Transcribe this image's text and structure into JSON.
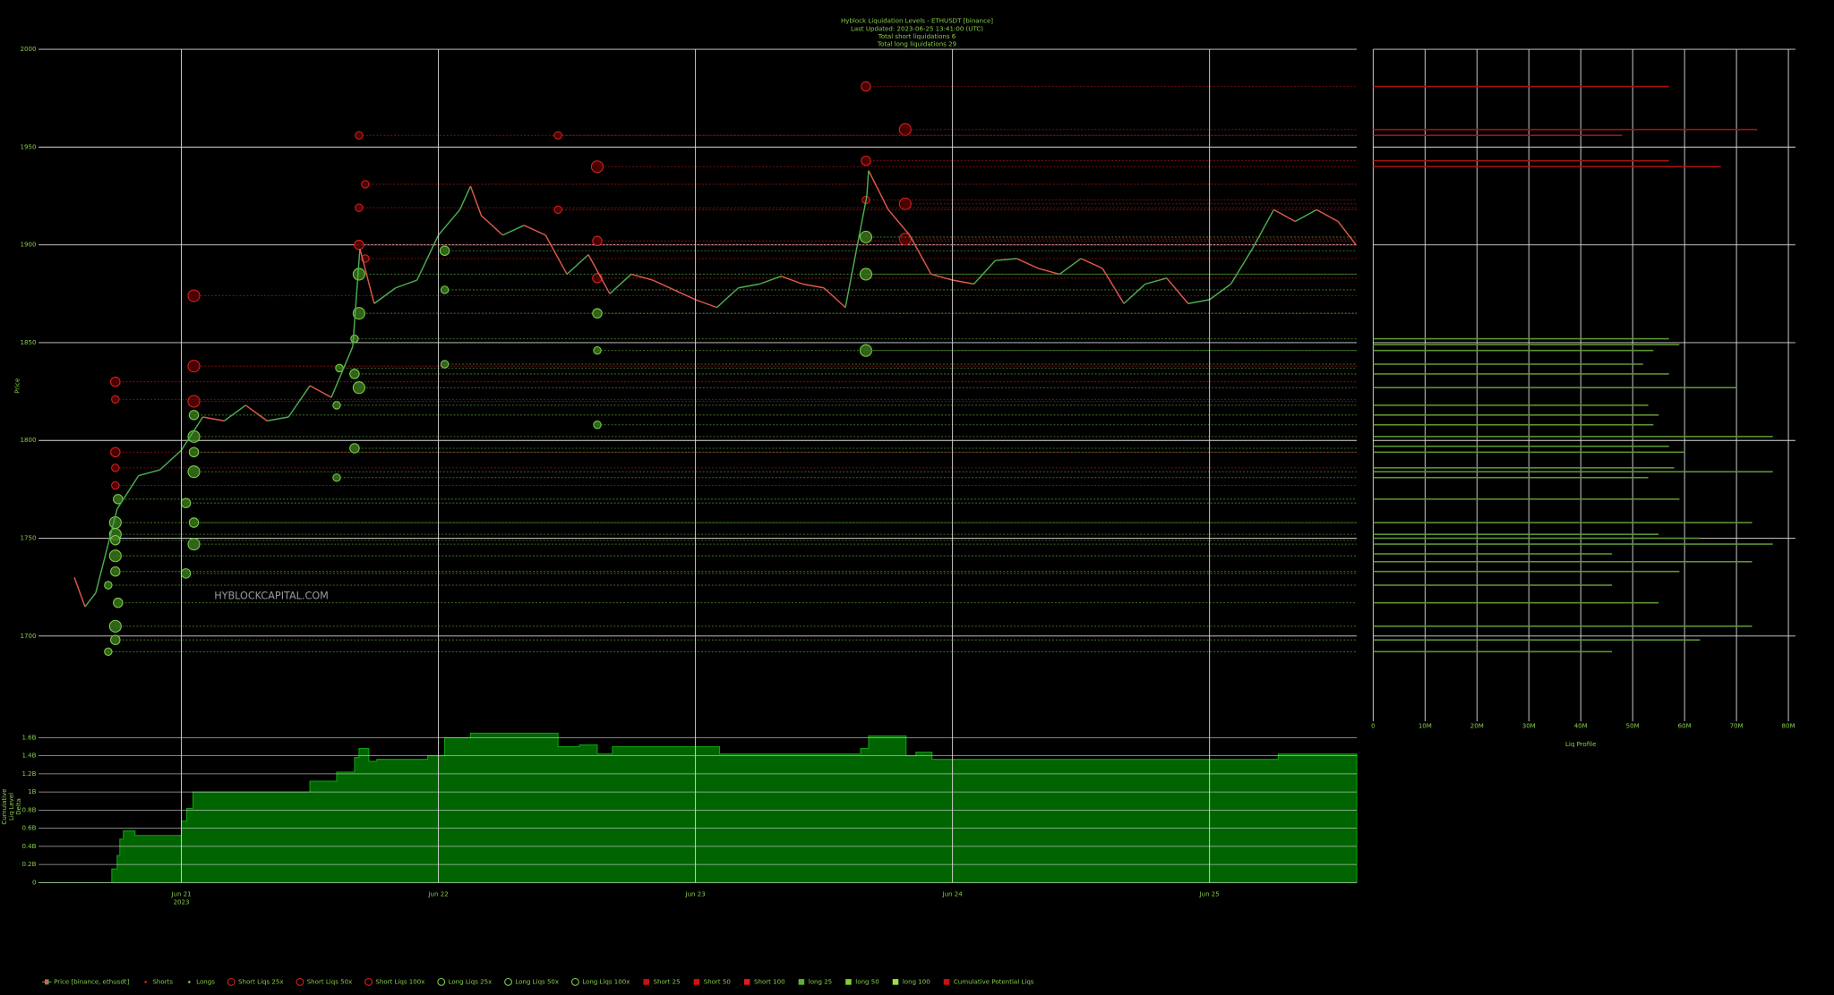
{
  "chart_data": [
    {
      "type": "line",
      "title_lines": [
        "Hyblock Liquidation Levels - ETHUSDT [binance]",
        "Last Updated: 2023-06-25 13:41:00 (UTC)",
        "Total short liquidations 6",
        "Total long liquidations 29"
      ],
      "ylabel": "Price",
      "watermark": "HYBLOCKCAPITAL.COM",
      "xlim": [
        "2023-06-20 10:40",
        "2023-06-25 13:45"
      ],
      "ylim": [
        1680,
        2000
      ],
      "yticks": [
        1700,
        1750,
        1800,
        1850,
        1900,
        1950,
        2000
      ],
      "grid": true,
      "x": [
        "2023-06-20 14:00",
        "2023-06-20 15:00",
        "2023-06-20 16:00",
        "2023-06-20 18:00",
        "2023-06-20 20:00",
        "2023-06-20 22:00",
        "2023-06-21 00:00",
        "2023-06-21 02:00",
        "2023-06-21 04:00",
        "2023-06-21 06:00",
        "2023-06-21 08:00",
        "2023-06-21 10:00",
        "2023-06-21 12:00",
        "2023-06-21 14:00",
        "2023-06-21 16:00",
        "2023-06-21 16:40",
        "2023-06-21 18:00",
        "2023-06-21 20:00",
        "2023-06-21 22:00",
        "2023-06-22 00:00",
        "2023-06-22 02:00",
        "2023-06-22 03:00",
        "2023-06-22 04:00",
        "2023-06-22 06:00",
        "2023-06-22 08:00",
        "2023-06-22 10:00",
        "2023-06-22 12:00",
        "2023-06-22 14:00",
        "2023-06-22 16:00",
        "2023-06-22 18:00",
        "2023-06-22 20:00",
        "2023-06-22 22:00",
        "2023-06-23 00:00",
        "2023-06-23 02:00",
        "2023-06-23 04:00",
        "2023-06-23 06:00",
        "2023-06-23 08:00",
        "2023-06-23 10:00",
        "2023-06-23 12:00",
        "2023-06-23 14:00",
        "2023-06-23 16:00",
        "2023-06-23 16:10",
        "2023-06-23 18:00",
        "2023-06-23 20:00",
        "2023-06-23 22:00",
        "2023-06-24 00:00",
        "2023-06-24 02:00",
        "2023-06-24 04:00",
        "2023-06-24 06:00",
        "2023-06-24 08:00",
        "2023-06-24 10:00",
        "2023-06-24 12:00",
        "2023-06-24 14:00",
        "2023-06-24 16:00",
        "2023-06-24 18:00",
        "2023-06-24 20:00",
        "2023-06-24 22:00",
        "2023-06-25 00:00",
        "2023-06-25 02:00",
        "2023-06-25 04:00",
        "2023-06-25 06:00",
        "2023-06-25 08:00",
        "2023-06-25 10:00",
        "2023-06-25 12:00",
        "2023-06-25 13:41"
      ],
      "series": [
        {
          "up_color": "#4caf50",
          "down_color": "#e05a4a",
          "values": [
            1730,
            1715,
            1722,
            1765,
            1782,
            1785,
            1795,
            1812,
            1810,
            1818,
            1810,
            1812,
            1828,
            1822,
            1848,
            1898,
            1870,
            1878,
            1882,
            1905,
            1918,
            1930,
            1915,
            1905,
            1910,
            1905,
            1885,
            1895,
            1875,
            1885,
            1882,
            1877,
            1872,
            1868,
            1878,
            1880,
            1884,
            1880,
            1878,
            1868,
            1925,
            1938,
            1918,
            1905,
            1885,
            1882,
            1880,
            1892,
            1893,
            1888,
            1885,
            1893,
            1888,
            1870,
            1880,
            1883,
            1870,
            1872,
            1880,
            1898,
            1918,
            1912,
            1918,
            1912,
            1900
          ]
        }
      ],
      "liquidations": [
        {
          "color": "#e02020",
          "fill": "#5a0000",
          "line_color": "#7a1010",
          "x": [
            "2023-06-21 01:10",
            "2023-06-21 01:10",
            "2023-06-21 01:10",
            "2023-06-22 14:50",
            "2023-06-23 19:35",
            "2023-06-23 19:35",
            "2023-06-23 19:35"
          ],
          "values": [
            1874,
            1838,
            1820,
            1940,
            1959,
            1921,
            1903
          ]
        },
        {
          "color": "#e02020",
          "fill": "#5a0000",
          "line_color": "#7a1010",
          "x": [
            "2023-06-20 17:50",
            "2023-06-20 17:50",
            "2023-06-21 16:35",
            "2023-06-22 14:50",
            "2023-06-22 14:50",
            "2023-06-23 15:55",
            "2023-06-23 15:55"
          ],
          "values": [
            1830,
            1794,
            1900,
            1902,
            1883,
            1981,
            1943
          ]
        },
        {
          "color": "#e02020",
          "fill": "#5a0000",
          "line_color": "#7a1010",
          "x": [
            "2023-06-20 17:50",
            "2023-06-20 17:50",
            "2023-06-20 17:50",
            "2023-06-21 16:35",
            "2023-06-21 17:10",
            "2023-06-21 16:35",
            "2023-06-21 17:10",
            "2023-06-22 11:10",
            "2023-06-22 11:10",
            "2023-06-23 15:55"
          ],
          "values": [
            1821,
            1786,
            1777,
            1956,
            1931,
            1919,
            1893,
            1956,
            1918,
            1923
          ]
        },
        {
          "color": "#7ad04a",
          "fill": "#3c7a1e",
          "line_color": "#3f6b25",
          "x": [
            "2023-06-20 17:50",
            "2023-06-20 17:50",
            "2023-06-20 17:50",
            "2023-06-20 17:50",
            "2023-06-21 01:10",
            "2023-06-21 01:10",
            "2023-06-21 01:10",
            "2023-06-21 16:35",
            "2023-06-21 16:35",
            "2023-06-21 16:35",
            "2023-06-23 15:55",
            "2023-06-23 15:55",
            "2023-06-23 15:55"
          ],
          "values": [
            1705,
            1741,
            1752,
            1758,
            1747,
            1784,
            1802,
            1827,
            1865,
            1885,
            1846,
            1885,
            1904
          ]
        },
        {
          "color": "#7ad04a",
          "fill": "#3c7a1e",
          "line_color": "#3f6b25",
          "x": [
            "2023-06-20 17:50",
            "2023-06-20 18:05",
            "2023-06-20 17:50",
            "2023-06-20 17:50",
            "2023-06-20 18:05",
            "2023-06-21 00:25",
            "2023-06-21 00:25",
            "2023-06-21 01:10",
            "2023-06-21 01:10",
            "2023-06-21 01:10",
            "2023-06-21 16:10",
            "2023-06-21 16:10",
            "2023-06-22 00:35",
            "2023-06-22 14:50"
          ],
          "values": [
            1698,
            1717,
            1733,
            1749,
            1770,
            1732,
            1768,
            1758,
            1794,
            1813,
            1834,
            1796,
            1897,
            1865
          ]
        },
        {
          "color": "#7ad04a",
          "fill": "#3c7a1e",
          "line_color": "#3f6b25",
          "x": [
            "2023-06-20 17:10",
            "2023-06-20 17:10",
            "2023-06-21 14:30",
            "2023-06-21 14:30",
            "2023-06-21 14:45",
            "2023-06-21 16:10",
            "2023-06-22 00:35",
            "2023-06-22 00:35",
            "2023-06-22 14:50",
            "2023-06-22 14:50"
          ],
          "values": [
            1692,
            1726,
            1781,
            1818,
            1837,
            1852,
            1839,
            1877,
            1808,
            1846
          ]
        }
      ]
    },
    {
      "type": "bar",
      "orientation": "horizontal",
      "xlabel": "Liq Profile",
      "xlim": [
        0,
        80
      ],
      "xticks": [
        0,
        {
          "value": 10,
          "label": "10M"
        },
        {
          "value": 20,
          "label": "20M"
        },
        {
          "value": 30,
          "label": "30M"
        },
        {
          "value": 40,
          "label": "40M"
        },
        {
          "value": 50,
          "label": "50M"
        },
        {
          "value": 60,
          "label": "60M"
        },
        {
          "value": 70,
          "label": "70M"
        },
        {
          "value": 80,
          "label": "80M"
        }
      ],
      "ylim": [
        1680,
        2000
      ],
      "yticks": [
        1700,
        1750,
        1800,
        1850,
        1900,
        1950,
        2000
      ],
      "grid": true,
      "series": [
        {
          "color": "#a81212",
          "categories": [
            1981,
            1959,
            1956,
            1943,
            1940
          ],
          "values": [
            57,
            74,
            48,
            57,
            67
          ]
        },
        {
          "color": "#5f9634",
          "categories": [
            1852,
            1849,
            1846,
            1839,
            1834,
            1827,
            1818,
            1813,
            1808,
            1802,
            1797,
            1794,
            1786,
            1784,
            1781,
            1770,
            1758,
            1752,
            1750,
            1747,
            1742,
            1738,
            1733,
            1726,
            1717,
            1705,
            1698,
            1692
          ],
          "values": [
            57,
            59,
            54,
            52,
            57,
            70,
            53,
            55,
            54,
            77,
            57,
            60,
            58,
            77,
            53,
            59,
            73,
            55,
            63,
            77,
            46,
            73,
            59,
            46,
            55,
            73,
            63,
            46
          ]
        }
      ]
    },
    {
      "type": "area",
      "step": "post",
      "ylabel_lines": [
        "Cumulative",
        "Liq Level",
        "Delta"
      ],
      "xlim": [
        "2023-06-20 10:40",
        "2023-06-25 13:45"
      ],
      "xticks": [
        {
          "value": "2023-06-21",
          "label": "Jun 21"
        },
        {
          "value": "2023-06-22",
          "label": "Jun 22"
        },
        {
          "value": "2023-06-23",
          "label": "Jun 23"
        },
        {
          "value": "2023-06-24",
          "label": "Jun 24"
        },
        {
          "value": "2023-06-25",
          "label": "Jun 25"
        }
      ],
      "x_year_label": "2023",
      "ylim": [
        0,
        1.7
      ],
      "yticks": [
        0,
        {
          "value": 0.2,
          "label": "0.2B"
        },
        {
          "value": 0.4,
          "label": "0.4B"
        },
        {
          "value": 0.6,
          "label": "0.6B"
        },
        {
          "value": 0.8,
          "label": "0.8B"
        },
        {
          "value": 1,
          "label": "1B"
        },
        {
          "value": 1.2,
          "label": "1.2B"
        },
        {
          "value": 1.4,
          "label": "1.4B"
        },
        {
          "value": 1.6,
          "label": "1.6B"
        }
      ],
      "grid": true,
      "color": "#006400",
      "line_color": "#10a010",
      "x": [
        "2023-06-20 10:40",
        "2023-06-20 17:30",
        "2023-06-20 18:00",
        "2023-06-20 18:15",
        "2023-06-20 18:35",
        "2023-06-20 19:40",
        "2023-06-21 00:00",
        "2023-06-21 00:30",
        "2023-06-21 01:05",
        "2023-06-21 12:00",
        "2023-06-21 14:30",
        "2023-06-21 16:10",
        "2023-06-21 16:35",
        "2023-06-21 17:30",
        "2023-06-21 18:15",
        "2023-06-21 23:00",
        "2023-06-22 00:35",
        "2023-06-22 03:00",
        "2023-06-22 11:10",
        "2023-06-22 13:10",
        "2023-06-22 14:50",
        "2023-06-22 16:15",
        "2023-06-23 02:15",
        "2023-06-23 15:25",
        "2023-06-23 16:10",
        "2023-06-23 19:40",
        "2023-06-23 20:35",
        "2023-06-23 22:05",
        "2023-06-25 06:25"
      ],
      "values": [
        0,
        0.15,
        0.3,
        0.48,
        0.57,
        0.52,
        0.68,
        0.82,
        1,
        1.12,
        1.22,
        1.38,
        1.48,
        1.34,
        1.36,
        1.4,
        1.6,
        1.65,
        1.5,
        1.52,
        1.42,
        1.5,
        1.42,
        1.48,
        1.62,
        1.4,
        1.44,
        1.36,
        1.42
      ]
    }
  ],
  "legend": [
    {
      "name": "Price [binance, ethusdt]",
      "color": "#4caf50",
      "marker": "candle"
    },
    {
      "name": "Shorts",
      "color": "#e02020",
      "marker": "dot"
    },
    {
      "name": "Longs",
      "color": "#7ad04a",
      "marker": "dot"
    },
    {
      "name": "Short Liqs 25x",
      "color": "#e02020",
      "marker": "circle"
    },
    {
      "name": "Short Liqs 50x",
      "color": "#e02020",
      "marker": "circle"
    },
    {
      "name": "Short Liqs 100x",
      "color": "#e02020",
      "marker": "circle"
    },
    {
      "name": "Long Liqs 25x",
      "color": "#7ad04a",
      "marker": "circle"
    },
    {
      "name": "Long Liqs 50x",
      "color": "#7ad04a",
      "marker": "circle"
    },
    {
      "name": "Long Liqs 100x",
      "color": "#7ad04a",
      "marker": "circle"
    },
    {
      "name": "Short 25",
      "color": "#c81010",
      "marker": "square"
    },
    {
      "name": "Short 50",
      "color": "#d81010",
      "marker": "square"
    },
    {
      "name": "Short 100",
      "color": "#e81818",
      "marker": "square"
    },
    {
      "name": "long 25",
      "color": "#5fb030",
      "marker": "square"
    },
    {
      "name": "long 50",
      "color": "#7fd030",
      "marker": "square"
    },
    {
      "name": "long 100",
      "color": "#9fe040",
      "marker": "square"
    },
    {
      "name": "Cumulative Potential Liqs",
      "color": "#c81010",
      "marker": "square"
    }
  ]
}
